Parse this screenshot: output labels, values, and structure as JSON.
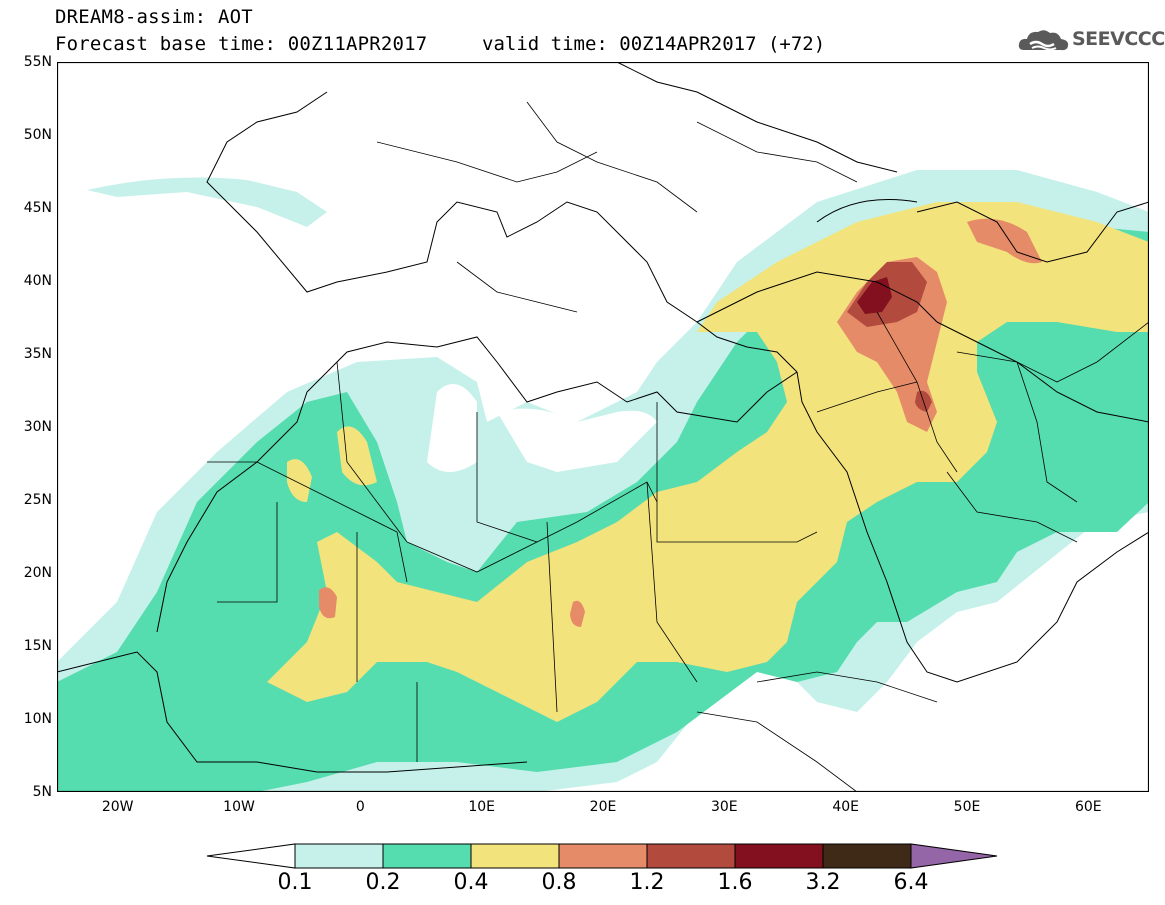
{
  "header": {
    "title": "DREAM8-assim: AOT",
    "base_time": "Forecast base time: 00Z11APR2017",
    "valid_time": "valid time: 00Z14APR2017 (+72)",
    "logo_text": "SEEVCCC"
  },
  "map": {
    "lat_labels": [
      "55N",
      "50N",
      "45N",
      "40N",
      "35N",
      "30N",
      "25N",
      "20N",
      "15N",
      "10N",
      "5N"
    ],
    "lon_labels": [
      "20W",
      "10W",
      "0",
      "10E",
      "20E",
      "30E",
      "40E",
      "50E",
      "60E"
    ],
    "lon_range": [
      -25,
      65
    ],
    "lat_range": [
      5,
      55
    ],
    "show_grid": false
  },
  "legend": {
    "levels": [
      "0.1",
      "0.2",
      "0.4",
      "0.8",
      "1.2",
      "1.6",
      "3.2",
      "6.4"
    ],
    "colors": {
      "lt_0_1": "#ffffff",
      "c_0_1": "#c5f1ea",
      "c_0_2": "#55dcaf",
      "c_0_4": "#f3e37c",
      "c_0_8": "#e58b68",
      "c_1_2": "#b24a3e",
      "c_1_6": "#82101f",
      "c_3_2": "#3f2a18",
      "gt_6_4": "#9466a8"
    }
  }
}
